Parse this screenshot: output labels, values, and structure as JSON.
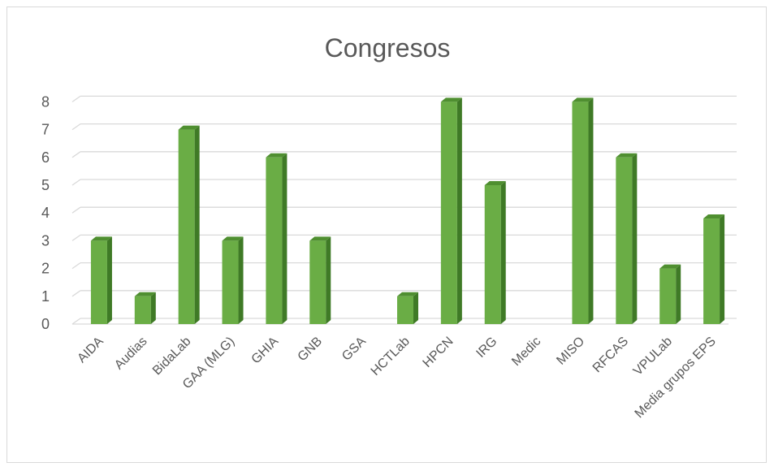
{
  "chart_data": {
    "type": "bar",
    "title": "Congresos",
    "categories": [
      "AIDA",
      "Audias",
      "BidaLab",
      "GAA (MLG)",
      "GHIA",
      "GNB",
      "GSA",
      "HCTLab",
      "HPCN",
      "IRG",
      "Medic",
      "MISO",
      "RFCAS",
      "VPULab",
      "Media grupos EPS"
    ],
    "values": [
      3,
      1,
      7,
      3,
      6,
      3,
      0,
      1,
      8,
      5,
      0,
      8,
      6,
      2,
      3.8
    ],
    "ylim": [
      0,
      8
    ],
    "yticks": [
      "0",
      "1",
      "2",
      "3",
      "4",
      "5",
      "6",
      "7",
      "8"
    ],
    "grid": true,
    "style": "3d-column",
    "colors": {
      "front": "#6aad45",
      "side": "#3f7a26",
      "top": "#4f8f30",
      "grid": "#d9d9d9",
      "text": "#595959"
    }
  }
}
